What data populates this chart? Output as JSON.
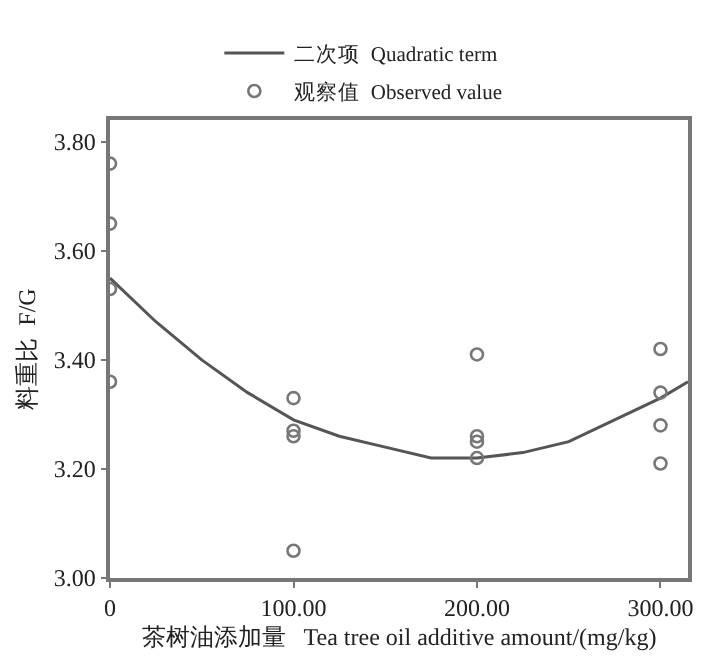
{
  "chart_data": {
    "type": "scatter",
    "xlabel": "茶树油添加量   Tea tree oil additive amount/(mg/kg)",
    "ylabel": "料重比  F/G",
    "xlim": [
      0,
      315
    ],
    "xticks": [
      {
        "value": 0,
        "label": "0"
      },
      {
        "value": 100,
        "label": "100.00"
      },
      {
        "value": 200,
        "label": "200.00"
      },
      {
        "value": 300,
        "label": "300.00"
      }
    ],
    "ylim": [
      3.0,
      3.84
    ],
    "yticks": [
      {
        "value": 3.0,
        "label": "3.00"
      },
      {
        "value": 3.2,
        "label": "3.20"
      },
      {
        "value": 3.4,
        "label": "3.40"
      },
      {
        "value": 3.6,
        "label": "3.60"
      },
      {
        "value": 3.8,
        "label": "3.80"
      }
    ],
    "grid": false,
    "legend": "top",
    "series": [
      {
        "name": "二次项  Quadratic term",
        "type": "line",
        "color": "#555555",
        "marker": "none",
        "line_style": "solid",
        "x": [
          0,
          25,
          50,
          75,
          100,
          125,
          150,
          175,
          200,
          225,
          250,
          275,
          300,
          315
        ],
        "values": [
          3.55,
          3.47,
          3.4,
          3.34,
          3.29,
          3.26,
          3.24,
          3.22,
          3.22,
          3.23,
          3.25,
          3.29,
          3.33,
          3.36
        ]
      },
      {
        "name": "观察值  Observed value",
        "type": "scatter",
        "color": "#777777",
        "marker": "circle",
        "x": [
          0,
          0,
          0,
          0,
          100,
          100,
          100,
          100,
          200,
          200,
          200,
          200,
          300,
          300,
          300,
          300
        ],
        "values": [
          3.76,
          3.65,
          3.53,
          3.36,
          3.33,
          3.27,
          3.26,
          3.05,
          3.41,
          3.26,
          3.25,
          3.22,
          3.42,
          3.34,
          3.28,
          3.21
        ]
      }
    ]
  }
}
